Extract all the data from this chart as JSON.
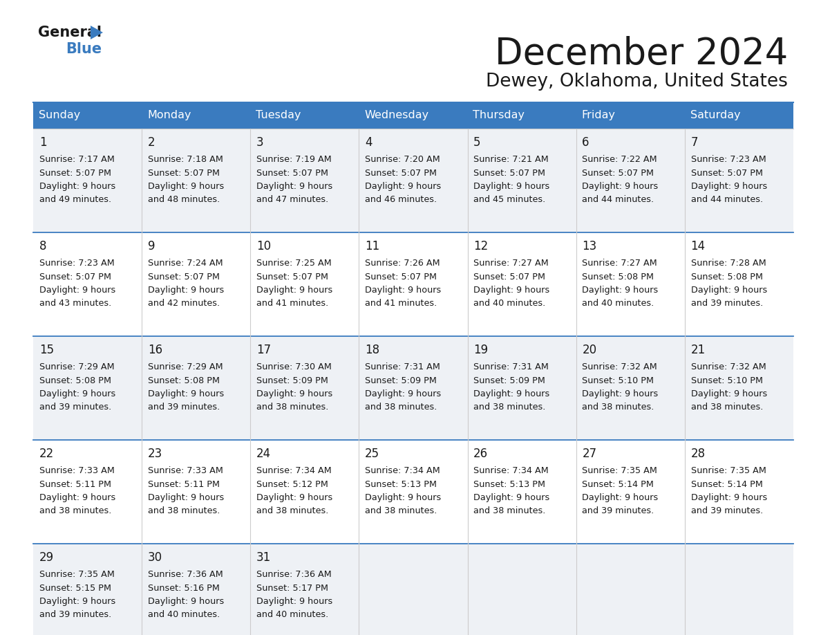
{
  "title": "December 2024",
  "subtitle": "Dewey, Oklahoma, United States",
  "header_color": "#3a7bbf",
  "header_text_color": "#ffffff",
  "row_bg_odd": "#eef1f5",
  "row_bg_even": "#ffffff",
  "border_color": "#3a7bbf",
  "text_color": "#1a1a1a",
  "day_names": [
    "Sunday",
    "Monday",
    "Tuesday",
    "Wednesday",
    "Thursday",
    "Friday",
    "Saturday"
  ],
  "days": [
    {
      "day": 1,
      "col": 0,
      "row": 0,
      "sunrise": "7:17 AM",
      "sunset": "5:07 PM",
      "daylight_hours": 9,
      "daylight_min": 49
    },
    {
      "day": 2,
      "col": 1,
      "row": 0,
      "sunrise": "7:18 AM",
      "sunset": "5:07 PM",
      "daylight_hours": 9,
      "daylight_min": 48
    },
    {
      "day": 3,
      "col": 2,
      "row": 0,
      "sunrise": "7:19 AM",
      "sunset": "5:07 PM",
      "daylight_hours": 9,
      "daylight_min": 47
    },
    {
      "day": 4,
      "col": 3,
      "row": 0,
      "sunrise": "7:20 AM",
      "sunset": "5:07 PM",
      "daylight_hours": 9,
      "daylight_min": 46
    },
    {
      "day": 5,
      "col": 4,
      "row": 0,
      "sunrise": "7:21 AM",
      "sunset": "5:07 PM",
      "daylight_hours": 9,
      "daylight_min": 45
    },
    {
      "day": 6,
      "col": 5,
      "row": 0,
      "sunrise": "7:22 AM",
      "sunset": "5:07 PM",
      "daylight_hours": 9,
      "daylight_min": 44
    },
    {
      "day": 7,
      "col": 6,
      "row": 0,
      "sunrise": "7:23 AM",
      "sunset": "5:07 PM",
      "daylight_hours": 9,
      "daylight_min": 44
    },
    {
      "day": 8,
      "col": 0,
      "row": 1,
      "sunrise": "7:23 AM",
      "sunset": "5:07 PM",
      "daylight_hours": 9,
      "daylight_min": 43
    },
    {
      "day": 9,
      "col": 1,
      "row": 1,
      "sunrise": "7:24 AM",
      "sunset": "5:07 PM",
      "daylight_hours": 9,
      "daylight_min": 42
    },
    {
      "day": 10,
      "col": 2,
      "row": 1,
      "sunrise": "7:25 AM",
      "sunset": "5:07 PM",
      "daylight_hours": 9,
      "daylight_min": 41
    },
    {
      "day": 11,
      "col": 3,
      "row": 1,
      "sunrise": "7:26 AM",
      "sunset": "5:07 PM",
      "daylight_hours": 9,
      "daylight_min": 41
    },
    {
      "day": 12,
      "col": 4,
      "row": 1,
      "sunrise": "7:27 AM",
      "sunset": "5:07 PM",
      "daylight_hours": 9,
      "daylight_min": 40
    },
    {
      "day": 13,
      "col": 5,
      "row": 1,
      "sunrise": "7:27 AM",
      "sunset": "5:08 PM",
      "daylight_hours": 9,
      "daylight_min": 40
    },
    {
      "day": 14,
      "col": 6,
      "row": 1,
      "sunrise": "7:28 AM",
      "sunset": "5:08 PM",
      "daylight_hours": 9,
      "daylight_min": 39
    },
    {
      "day": 15,
      "col": 0,
      "row": 2,
      "sunrise": "7:29 AM",
      "sunset": "5:08 PM",
      "daylight_hours": 9,
      "daylight_min": 39
    },
    {
      "day": 16,
      "col": 1,
      "row": 2,
      "sunrise": "7:29 AM",
      "sunset": "5:08 PM",
      "daylight_hours": 9,
      "daylight_min": 39
    },
    {
      "day": 17,
      "col": 2,
      "row": 2,
      "sunrise": "7:30 AM",
      "sunset": "5:09 PM",
      "daylight_hours": 9,
      "daylight_min": 38
    },
    {
      "day": 18,
      "col": 3,
      "row": 2,
      "sunrise": "7:31 AM",
      "sunset": "5:09 PM",
      "daylight_hours": 9,
      "daylight_min": 38
    },
    {
      "day": 19,
      "col": 4,
      "row": 2,
      "sunrise": "7:31 AM",
      "sunset": "5:09 PM",
      "daylight_hours": 9,
      "daylight_min": 38
    },
    {
      "day": 20,
      "col": 5,
      "row": 2,
      "sunrise": "7:32 AM",
      "sunset": "5:10 PM",
      "daylight_hours": 9,
      "daylight_min": 38
    },
    {
      "day": 21,
      "col": 6,
      "row": 2,
      "sunrise": "7:32 AM",
      "sunset": "5:10 PM",
      "daylight_hours": 9,
      "daylight_min": 38
    },
    {
      "day": 22,
      "col": 0,
      "row": 3,
      "sunrise": "7:33 AM",
      "sunset": "5:11 PM",
      "daylight_hours": 9,
      "daylight_min": 38
    },
    {
      "day": 23,
      "col": 1,
      "row": 3,
      "sunrise": "7:33 AM",
      "sunset": "5:11 PM",
      "daylight_hours": 9,
      "daylight_min": 38
    },
    {
      "day": 24,
      "col": 2,
      "row": 3,
      "sunrise": "7:34 AM",
      "sunset": "5:12 PM",
      "daylight_hours": 9,
      "daylight_min": 38
    },
    {
      "day": 25,
      "col": 3,
      "row": 3,
      "sunrise": "7:34 AM",
      "sunset": "5:13 PM",
      "daylight_hours": 9,
      "daylight_min": 38
    },
    {
      "day": 26,
      "col": 4,
      "row": 3,
      "sunrise": "7:34 AM",
      "sunset": "5:13 PM",
      "daylight_hours": 9,
      "daylight_min": 38
    },
    {
      "day": 27,
      "col": 5,
      "row": 3,
      "sunrise": "7:35 AM",
      "sunset": "5:14 PM",
      "daylight_hours": 9,
      "daylight_min": 39
    },
    {
      "day": 28,
      "col": 6,
      "row": 3,
      "sunrise": "7:35 AM",
      "sunset": "5:14 PM",
      "daylight_hours": 9,
      "daylight_min": 39
    },
    {
      "day": 29,
      "col": 0,
      "row": 4,
      "sunrise": "7:35 AM",
      "sunset": "5:15 PM",
      "daylight_hours": 9,
      "daylight_min": 39
    },
    {
      "day": 30,
      "col": 1,
      "row": 4,
      "sunrise": "7:36 AM",
      "sunset": "5:16 PM",
      "daylight_hours": 9,
      "daylight_min": 40
    },
    {
      "day": 31,
      "col": 2,
      "row": 4,
      "sunrise": "7:36 AM",
      "sunset": "5:17 PM",
      "daylight_hours": 9,
      "daylight_min": 40
    }
  ]
}
